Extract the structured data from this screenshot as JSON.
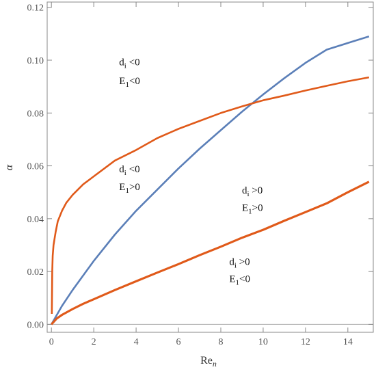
{
  "chart_data": {
    "type": "line",
    "xlabel": "Re",
    "xlabel_sub": "n",
    "ylabel": "α",
    "xlim": [
      -0.2,
      15.2
    ],
    "ylim": [
      -0.003,
      0.122
    ],
    "x_ticks": [
      0,
      2,
      4,
      6,
      8,
      10,
      12,
      14
    ],
    "y_ticks": [
      0.0,
      0.02,
      0.04,
      0.06,
      0.08,
      0.1,
      0.12
    ],
    "grid": false,
    "colors": {
      "blue": "#5b7fb8",
      "orange": "#e05a1a",
      "frame": "#888888"
    },
    "series": [
      {
        "color": "#5b7fb8",
        "x": [
          0,
          0.5,
          1,
          2,
          3,
          4,
          5,
          6,
          7,
          8,
          9,
          10,
          11,
          12,
          13,
          14,
          15
        ],
        "y": [
          0.0,
          0.007,
          0.013,
          0.024,
          0.034,
          0.043,
          0.051,
          0.059,
          0.0665,
          0.0735,
          0.0805,
          0.087,
          0.0932,
          0.099,
          0.104,
          0.1065,
          0.109
        ]
      },
      {
        "color": "#e05a1a",
        "x": [
          0.02,
          0.04,
          0.06,
          0.1,
          0.2,
          0.3,
          0.5,
          0.7,
          1,
          1.5,
          2,
          3,
          4,
          5,
          6,
          7,
          8,
          9,
          10,
          11,
          12,
          13,
          14,
          15
        ],
        "y": [
          0.004,
          0.02,
          0.026,
          0.03,
          0.035,
          0.039,
          0.043,
          0.046,
          0.049,
          0.053,
          0.056,
          0.062,
          0.066,
          0.0705,
          0.074,
          0.077,
          0.08,
          0.0825,
          0.0848,
          0.0866,
          0.0885,
          0.0903,
          0.092,
          0.0935
        ]
      },
      {
        "color": "#e05a1a",
        "x": [
          0,
          0.25,
          0.5,
          1,
          1.5,
          2,
          3,
          4,
          5,
          6,
          7,
          8,
          9,
          10,
          11,
          12,
          13,
          14,
          15
        ],
        "y": [
          0.0,
          0.0022,
          0.0036,
          0.0058,
          0.0078,
          0.0095,
          0.013,
          0.0163,
          0.0196,
          0.0228,
          0.0262,
          0.0294,
          0.0328,
          0.0358,
          0.0392,
          0.0425,
          0.0458,
          0.05,
          0.054
        ]
      }
    ],
    "annotations": [
      {
        "line1": "d",
        "line1_sub": "i",
        "line1_rest": " <0",
        "line2": "E",
        "line2_sub": "1",
        "line2_rest": "<0",
        "x": 3.2,
        "y1": 0.098,
        "y2": 0.091
      },
      {
        "line1": "d",
        "line1_sub": "i",
        "line1_rest": " <0",
        "line2": "E",
        "line2_sub": "1",
        "line2_rest": ">0",
        "x": 3.2,
        "y1": 0.0575,
        "y2": 0.0508
      },
      {
        "line1": "d",
        "line1_sub": "i",
        "line1_rest": " >0",
        "line2": "E",
        "line2_sub": "1",
        "line2_rest": ">0",
        "x": 9.0,
        "y1": 0.0495,
        "y2": 0.043
      },
      {
        "line1": "d",
        "line1_sub": "i",
        "line1_rest": " >0",
        "line2": "E",
        "line2_sub": "1",
        "line2_rest": "<0",
        "x": 8.4,
        "y1": 0.0225,
        "y2": 0.016
      }
    ]
  }
}
